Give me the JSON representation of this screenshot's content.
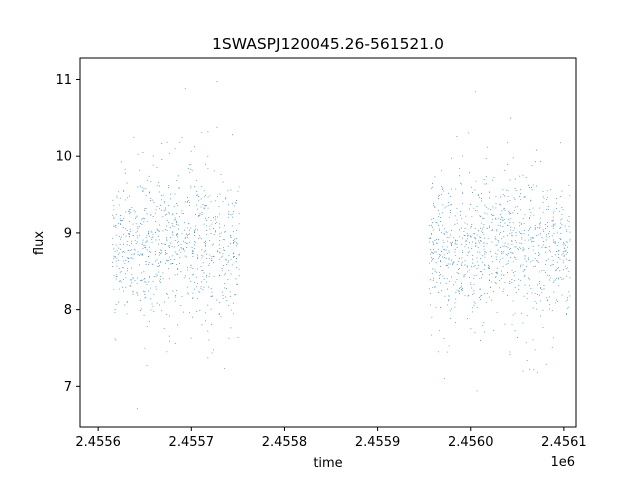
{
  "chart_data": {
    "type": "scatter",
    "title": "1SWASPJ120045.26-561521.0",
    "xlabel": "time",
    "ylabel": "flux",
    "x_offset_label": "1e6",
    "xlim": [
      2455580.5,
      2456113.0
    ],
    "ylim": [
      6.47,
      11.28
    ],
    "x_ticks": [
      2455600,
      2455700,
      2455800,
      2455900,
      2456000,
      2456100
    ],
    "x_tick_labels": [
      "2.4556",
      "2.4557",
      "2.4558",
      "2.4559",
      "2.4560",
      "2.4561"
    ],
    "y_ticks": [
      7,
      8,
      9,
      10,
      11
    ],
    "y_tick_labels": [
      "7",
      "8",
      "9",
      "10",
      "11"
    ],
    "grid": false,
    "marker_color": "#1f77b4",
    "series": [
      {
        "observing_seasons": [
          {
            "x_range": [
              2455615,
              2455675
            ],
            "y_center": 8.8,
            "y_spread": 0.45
          },
          {
            "x_range": [
              2455675,
              2455752
            ],
            "y_center": 8.85,
            "y_spread": 0.5
          },
          {
            "x_range": [
              2455955,
              2456107
            ],
            "y_center": 8.8,
            "y_spread": 0.45
          }
        ],
        "y_range": [
          6.7,
          11.05
        ]
      }
    ]
  }
}
